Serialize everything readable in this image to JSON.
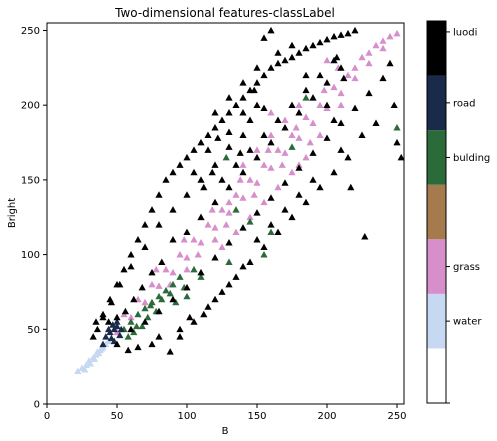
{
  "chart_data": {
    "type": "scatter",
    "title": "Two-dimensional features-classLabel",
    "xlabel": "B",
    "ylabel": "Bright",
    "xlim": [
      0,
      255
    ],
    "ylim": [
      0,
      255
    ],
    "xticks": [
      0,
      50,
      100,
      150,
      200,
      250
    ],
    "yticks": [
      0,
      50,
      100,
      150,
      200,
      250
    ],
    "marker": "triangle",
    "grid": false,
    "series": [
      {
        "name": "water",
        "color": "#c6d8f2",
        "points": [
          [
            22,
            22
          ],
          [
            25,
            24
          ],
          [
            28,
            26
          ],
          [
            30,
            29
          ],
          [
            33,
            31
          ],
          [
            35,
            33
          ],
          [
            36,
            35
          ],
          [
            38,
            36
          ],
          [
            40,
            38
          ],
          [
            27,
            23
          ],
          [
            31,
            27
          ],
          [
            34,
            30
          ],
          [
            37,
            34
          ],
          [
            39,
            37
          ],
          [
            42,
            40
          ],
          [
            44,
            42
          ]
        ]
      },
      {
        "name": "grass",
        "color": "#d68fcb",
        "points": [
          [
            50,
            48
          ],
          [
            60,
            58
          ],
          [
            70,
            68
          ],
          [
            80,
            79
          ],
          [
            90,
            88
          ],
          [
            100,
            98
          ],
          [
            110,
            108
          ],
          [
            120,
            118
          ],
          [
            130,
            128
          ],
          [
            140,
            138
          ],
          [
            150,
            148
          ],
          [
            160,
            158
          ],
          [
            170,
            168
          ],
          [
            180,
            178
          ],
          [
            190,
            188
          ],
          [
            200,
            198
          ],
          [
            210,
            208
          ],
          [
            220,
            218
          ],
          [
            230,
            228
          ],
          [
            240,
            238
          ],
          [
            245,
            246
          ],
          [
            235,
            240
          ],
          [
            225,
            232
          ],
          [
            215,
            220
          ],
          [
            205,
            212
          ],
          [
            195,
            200
          ],
          [
            185,
            192
          ],
          [
            175,
            180
          ],
          [
            165,
            170
          ],
          [
            155,
            160
          ],
          [
            145,
            150
          ],
          [
            135,
            140
          ],
          [
            125,
            130
          ],
          [
            115,
            120
          ],
          [
            105,
            110
          ],
          [
            95,
            100
          ],
          [
            85,
            90
          ],
          [
            75,
            80
          ],
          [
            65,
            70
          ],
          [
            55,
            60
          ],
          [
            198,
            210
          ],
          [
            208,
            225
          ],
          [
            188,
            175
          ],
          [
            178,
            185
          ],
          [
            168,
            160
          ],
          [
            158,
            170
          ],
          [
            148,
            140
          ],
          [
            138,
            150
          ],
          [
            128,
            120
          ],
          [
            118,
            130
          ],
          [
            108,
            100
          ],
          [
            98,
            110
          ],
          [
            88,
            80
          ],
          [
            78,
            90
          ],
          [
            140,
            160
          ],
          [
            150,
            170
          ],
          [
            160,
            180
          ],
          [
            170,
            190
          ],
          [
            180,
            200
          ],
          [
            190,
            205
          ],
          [
            130,
            135
          ],
          [
            120,
            110
          ],
          [
            110,
            125
          ],
          [
            100,
            90
          ],
          [
            210,
            200
          ],
          [
            220,
            225
          ],
          [
            230,
            235
          ],
          [
            240,
            243
          ],
          [
            250,
            248
          ],
          [
            160,
            195
          ],
          [
            200,
            230
          ],
          [
            180,
            160
          ],
          [
            135,
            115
          ],
          [
            125,
            105
          ],
          [
            145,
            125
          ],
          [
            155,
            135
          ],
          [
            165,
            145
          ],
          [
            175,
            155
          ],
          [
            185,
            165
          ],
          [
            195,
            180
          ]
        ]
      },
      {
        "name": "bulding",
        "color": "#2b6b3a",
        "points": [
          [
            60,
            55
          ],
          [
            65,
            60
          ],
          [
            70,
            64
          ],
          [
            75,
            68
          ],
          [
            80,
            72
          ],
          [
            85,
            76
          ],
          [
            90,
            80
          ],
          [
            95,
            85
          ],
          [
            62,
            48
          ],
          [
            68,
            52
          ],
          [
            72,
            58
          ],
          [
            78,
            62
          ],
          [
            82,
            70
          ],
          [
            88,
            74
          ],
          [
            55,
            50
          ],
          [
            58,
            45
          ],
          [
            64,
            52
          ],
          [
            74,
            66
          ],
          [
            128,
            165
          ],
          [
            135,
            130
          ],
          [
            175,
            172
          ],
          [
            250,
            185
          ],
          [
            185,
            205
          ],
          [
            145,
            122
          ],
          [
            160,
            115
          ],
          [
            155,
            100
          ],
          [
            130,
            95
          ],
          [
            110,
            85
          ],
          [
            100,
            72
          ],
          [
            92,
            68
          ],
          [
            98,
            78
          ],
          [
            105,
            90
          ]
        ]
      },
      {
        "name": "road",
        "color": "#1a2a4a",
        "points": [
          [
            42,
            45
          ],
          [
            45,
            48
          ],
          [
            48,
            50
          ],
          [
            50,
            52
          ],
          [
            40,
            40
          ],
          [
            46,
            44
          ],
          [
            52,
            46
          ],
          [
            44,
            50
          ],
          [
            48,
            42
          ],
          [
            50,
            55
          ],
          [
            53,
            50
          ],
          [
            47,
            53
          ]
        ]
      },
      {
        "name": "luodi",
        "color": "#000000",
        "points": [
          [
            35,
            55
          ],
          [
            40,
            60
          ],
          [
            45,
            70
          ],
          [
            50,
            80
          ],
          [
            55,
            90
          ],
          [
            60,
            100
          ],
          [
            65,
            110
          ],
          [
            70,
            120
          ],
          [
            75,
            130
          ],
          [
            80,
            140
          ],
          [
            85,
            150
          ],
          [
            90,
            155
          ],
          [
            95,
            160
          ],
          [
            100,
            165
          ],
          [
            105,
            170
          ],
          [
            110,
            175
          ],
          [
            115,
            180
          ],
          [
            120,
            185
          ],
          [
            125,
            190
          ],
          [
            130,
            195
          ],
          [
            135,
            200
          ],
          [
            140,
            205
          ],
          [
            145,
            210
          ],
          [
            150,
            215
          ],
          [
            155,
            220
          ],
          [
            160,
            225
          ],
          [
            165,
            228
          ],
          [
            170,
            230
          ],
          [
            175,
            232
          ],
          [
            180,
            235
          ],
          [
            185,
            238
          ],
          [
            190,
            240
          ],
          [
            195,
            242
          ],
          [
            200,
            244
          ],
          [
            205,
            246
          ],
          [
            210,
            247
          ],
          [
            215,
            248
          ],
          [
            220,
            250
          ],
          [
            155,
            245
          ],
          [
            160,
            250
          ],
          [
            175,
            240
          ],
          [
            207,
            232
          ],
          [
            212,
            218
          ],
          [
            205,
            190
          ],
          [
            210,
            170
          ],
          [
            217,
            145
          ],
          [
            227,
            112
          ],
          [
            250,
            175
          ],
          [
            253,
            165
          ],
          [
            225,
            180
          ],
          [
            235,
            188
          ],
          [
            248,
            200
          ],
          [
            145,
            190
          ],
          [
            150,
            200
          ],
          [
            140,
            180
          ],
          [
            130,
            172
          ],
          [
            120,
            160
          ],
          [
            110,
            150
          ],
          [
            100,
            140
          ],
          [
            90,
            130
          ],
          [
            80,
            120
          ],
          [
            70,
            105
          ],
          [
            60,
            92
          ],
          [
            52,
            80
          ],
          [
            46,
            68
          ],
          [
            40,
            58
          ],
          [
            36,
            50
          ],
          [
            33,
            45
          ],
          [
            100,
            115
          ],
          [
            110,
            125
          ],
          [
            120,
            135
          ],
          [
            130,
            145
          ],
          [
            140,
            155
          ],
          [
            150,
            165
          ],
          [
            160,
            175
          ],
          [
            170,
            185
          ],
          [
            180,
            195
          ],
          [
            190,
            205
          ],
          [
            200,
            215
          ],
          [
            210,
            225
          ],
          [
            125,
            150
          ],
          [
            135,
            160
          ],
          [
            145,
            170
          ],
          [
            155,
            180
          ],
          [
            165,
            190
          ],
          [
            175,
            200
          ],
          [
            185,
            210
          ],
          [
            195,
            220
          ],
          [
            205,
            230
          ],
          [
            112,
            145
          ],
          [
            105,
            155
          ],
          [
            115,
            170
          ],
          [
            130,
            182
          ],
          [
            140,
            195
          ],
          [
            148,
            210
          ],
          [
            155,
            198
          ],
          [
            90,
            110
          ],
          [
            82,
            95
          ],
          [
            75,
            88
          ],
          [
            68,
            78
          ],
          [
            62,
            70
          ],
          [
            56,
            62
          ],
          [
            50,
            58
          ],
          [
            44,
            55
          ],
          [
            60,
            50
          ],
          [
            70,
            55
          ],
          [
            80,
            62
          ],
          [
            90,
            70
          ],
          [
            100,
            78
          ],
          [
            110,
            88
          ],
          [
            120,
            98
          ],
          [
            130,
            108
          ],
          [
            140,
            118
          ],
          [
            150,
            128
          ],
          [
            160,
            138
          ],
          [
            170,
            148
          ],
          [
            180,
            158
          ],
          [
            190,
            168
          ],
          [
            200,
            178
          ],
          [
            210,
            188
          ],
          [
            220,
            198
          ],
          [
            230,
            208
          ],
          [
            240,
            218
          ],
          [
            245,
            228
          ],
          [
            88,
            35
          ],
          [
            95,
            45
          ],
          [
            105,
            55
          ],
          [
            115,
            65
          ],
          [
            125,
            75
          ],
          [
            135,
            85
          ],
          [
            145,
            95
          ],
          [
            155,
            105
          ],
          [
            165,
            115
          ],
          [
            175,
            125
          ],
          [
            185,
            135
          ],
          [
            195,
            145
          ],
          [
            205,
            155
          ],
          [
            215,
            165
          ],
          [
            80,
            45
          ],
          [
            75,
            40
          ],
          [
            65,
            38
          ],
          [
            58,
            36
          ],
          [
            50,
            40
          ],
          [
            120,
            70
          ],
          [
            130,
            80
          ],
          [
            140,
            92
          ],
          [
            112,
            60
          ],
          [
            102,
            58
          ],
          [
            95,
            50
          ],
          [
            150,
            110
          ],
          [
            160,
            120
          ],
          [
            170,
            130
          ],
          [
            180,
            140
          ],
          [
            190,
            150
          ],
          [
            122,
            178
          ],
          [
            138,
            168
          ],
          [
            118,
            155
          ],
          [
            200,
            200
          ],
          [
            185,
            220
          ],
          [
            165,
            235
          ],
          [
            150,
            225
          ],
          [
            140,
            215
          ],
          [
            130,
            205
          ],
          [
            120,
            195
          ]
        ]
      }
    ],
    "colorbar": {
      "ticks": [
        "water",
        "grass",
        "bulding",
        "road",
        "luodi"
      ],
      "segments": [
        "#ffffff",
        "#c6d8f2",
        "#d68fcb",
        "#a57b4d",
        "#2b6b3a",
        "#1a2a4a",
        "#000000"
      ]
    }
  }
}
